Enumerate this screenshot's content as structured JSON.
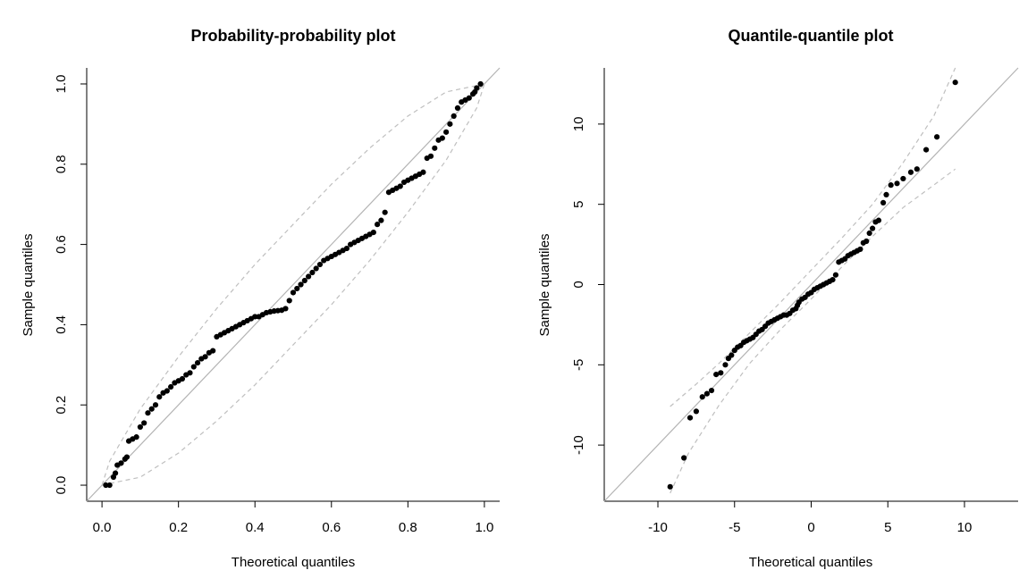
{
  "colors": {
    "points": "#000000",
    "reference_line": "#b3b3b3",
    "envelope": "#bfbfbf",
    "axes": "#000000"
  },
  "chart_data": [
    {
      "type": "scatter",
      "title": "Probability-probability plot",
      "xlabel": "Theoretical quantiles",
      "ylabel": "Sample quantiles",
      "xlim": [
        -0.04,
        1.04
      ],
      "ylim": [
        -0.04,
        1.04
      ],
      "xticks": [
        0.0,
        0.2,
        0.4,
        0.6,
        0.8,
        1.0
      ],
      "yticks": [
        0.0,
        0.2,
        0.4,
        0.6,
        0.8,
        1.0
      ],
      "xtick_labels": [
        "0.0",
        "0.2",
        "0.4",
        "0.6",
        "0.8",
        "1.0"
      ],
      "ytick_labels": [
        "0.0",
        "0.2",
        "0.4",
        "0.6",
        "0.8",
        "1.0"
      ],
      "grid": false,
      "reference_line": {
        "from": [
          -0.04,
          -0.04
        ],
        "to": [
          1.04,
          1.04
        ]
      },
      "envelope_upper": [
        [
          0.0,
          0.0
        ],
        [
          0.02,
          0.06
        ],
        [
          0.1,
          0.19
        ],
        [
          0.2,
          0.32
        ],
        [
          0.3,
          0.44
        ],
        [
          0.4,
          0.55
        ],
        [
          0.5,
          0.65
        ],
        [
          0.6,
          0.75
        ],
        [
          0.7,
          0.84
        ],
        [
          0.8,
          0.92
        ],
        [
          0.9,
          0.98
        ],
        [
          1.0,
          1.0
        ]
      ],
      "envelope_lower": [
        [
          0.0,
          0.0
        ],
        [
          0.1,
          0.02
        ],
        [
          0.2,
          0.08
        ],
        [
          0.3,
          0.16
        ],
        [
          0.4,
          0.25
        ],
        [
          0.5,
          0.35
        ],
        [
          0.6,
          0.45
        ],
        [
          0.7,
          0.56
        ],
        [
          0.8,
          0.68
        ],
        [
          0.9,
          0.81
        ],
        [
          0.98,
          0.94
        ],
        [
          1.0,
          1.0
        ]
      ],
      "series": [
        {
          "points": [
            [
              0.01,
              0.0
            ],
            [
              0.02,
              0.0
            ],
            [
              0.03,
              0.02
            ],
            [
              0.035,
              0.03
            ],
            [
              0.04,
              0.05
            ],
            [
              0.05,
              0.055
            ],
            [
              0.06,
              0.065
            ],
            [
              0.065,
              0.07
            ],
            [
              0.07,
              0.11
            ],
            [
              0.08,
              0.115
            ],
            [
              0.09,
              0.12
            ],
            [
              0.1,
              0.145
            ],
            [
              0.11,
              0.155
            ],
            [
              0.12,
              0.18
            ],
            [
              0.13,
              0.19
            ],
            [
              0.14,
              0.2
            ],
            [
              0.15,
              0.22
            ],
            [
              0.16,
              0.23
            ],
            [
              0.17,
              0.235
            ],
            [
              0.18,
              0.245
            ],
            [
              0.19,
              0.255
            ],
            [
              0.2,
              0.26
            ],
            [
              0.21,
              0.265
            ],
            [
              0.22,
              0.275
            ],
            [
              0.23,
              0.28
            ],
            [
              0.24,
              0.295
            ],
            [
              0.25,
              0.305
            ],
            [
              0.26,
              0.315
            ],
            [
              0.27,
              0.32
            ],
            [
              0.28,
              0.33
            ],
            [
              0.29,
              0.335
            ],
            [
              0.3,
              0.37
            ],
            [
              0.31,
              0.375
            ],
            [
              0.32,
              0.38
            ],
            [
              0.33,
              0.385
            ],
            [
              0.34,
              0.39
            ],
            [
              0.35,
              0.395
            ],
            [
              0.36,
              0.4
            ],
            [
              0.37,
              0.405
            ],
            [
              0.38,
              0.41
            ],
            [
              0.39,
              0.415
            ],
            [
              0.4,
              0.42
            ],
            [
              0.41,
              0.42
            ],
            [
              0.42,
              0.425
            ],
            [
              0.43,
              0.43
            ],
            [
              0.44,
              0.432
            ],
            [
              0.45,
              0.434
            ],
            [
              0.46,
              0.435
            ],
            [
              0.47,
              0.436
            ],
            [
              0.48,
              0.44
            ],
            [
              0.49,
              0.46
            ],
            [
              0.5,
              0.48
            ],
            [
              0.51,
              0.49
            ],
            [
              0.52,
              0.5
            ],
            [
              0.53,
              0.51
            ],
            [
              0.54,
              0.52
            ],
            [
              0.55,
              0.53
            ],
            [
              0.56,
              0.54
            ],
            [
              0.57,
              0.55
            ],
            [
              0.58,
              0.56
            ],
            [
              0.59,
              0.565
            ],
            [
              0.6,
              0.57
            ],
            [
              0.61,
              0.575
            ],
            [
              0.62,
              0.58
            ],
            [
              0.63,
              0.585
            ],
            [
              0.64,
              0.59
            ],
            [
              0.65,
              0.6
            ],
            [
              0.66,
              0.605
            ],
            [
              0.67,
              0.61
            ],
            [
              0.68,
              0.615
            ],
            [
              0.69,
              0.62
            ],
            [
              0.7,
              0.625
            ],
            [
              0.71,
              0.63
            ],
            [
              0.72,
              0.65
            ],
            [
              0.73,
              0.66
            ],
            [
              0.74,
              0.68
            ],
            [
              0.75,
              0.73
            ],
            [
              0.76,
              0.735
            ],
            [
              0.77,
              0.74
            ],
            [
              0.78,
              0.745
            ],
            [
              0.79,
              0.755
            ],
            [
              0.8,
              0.76
            ],
            [
              0.81,
              0.765
            ],
            [
              0.82,
              0.77
            ],
            [
              0.83,
              0.775
            ],
            [
              0.84,
              0.78
            ],
            [
              0.85,
              0.815
            ],
            [
              0.86,
              0.82
            ],
            [
              0.87,
              0.84
            ],
            [
              0.88,
              0.86
            ],
            [
              0.89,
              0.865
            ],
            [
              0.9,
              0.88
            ],
            [
              0.91,
              0.9
            ],
            [
              0.92,
              0.92
            ],
            [
              0.93,
              0.94
            ],
            [
              0.94,
              0.955
            ],
            [
              0.95,
              0.96
            ],
            [
              0.96,
              0.965
            ],
            [
              0.97,
              0.975
            ],
            [
              0.975,
              0.98
            ],
            [
              0.98,
              0.99
            ],
            [
              0.99,
              1.0
            ]
          ]
        }
      ]
    },
    {
      "type": "scatter",
      "title": "Quantile-quantile plot",
      "xlabel": "Theoretical quantiles",
      "ylabel": "Sample quantiles",
      "xlim": [
        -13.5,
        13.5
      ],
      "ylim": [
        -13.5,
        13.5
      ],
      "xticks": [
        -10,
        -5,
        0,
        5,
        10
      ],
      "yticks": [
        -10,
        -5,
        0,
        5,
        10
      ],
      "xtick_labels": [
        "-10",
        "-5",
        "0",
        "5",
        "10"
      ],
      "ytick_labels": [
        "-10",
        "-5",
        "0",
        "5",
        "10"
      ],
      "grid": false,
      "reference_line": {
        "from": [
          -13.5,
          -13.5
        ],
        "to": [
          13.5,
          13.5
        ]
      },
      "envelope_upper": [
        [
          -9.2,
          -7.6
        ],
        [
          -7.5,
          -6.2
        ],
        [
          -6.0,
          -4.9
        ],
        [
          -4.0,
          -3.0
        ],
        [
          -2.0,
          -1.1
        ],
        [
          0.0,
          0.9
        ],
        [
          2.0,
          2.9
        ],
        [
          4.0,
          5.0
        ],
        [
          6.0,
          7.6
        ],
        [
          8.0,
          10.5
        ],
        [
          9.4,
          13.5
        ]
      ],
      "envelope_lower": [
        [
          -9.2,
          -13.0
        ],
        [
          -8.0,
          -10.5
        ],
        [
          -6.0,
          -7.5
        ],
        [
          -4.0,
          -4.9
        ],
        [
          -2.0,
          -2.8
        ],
        [
          0.0,
          -0.9
        ],
        [
          2.0,
          1.1
        ],
        [
          4.0,
          3.0
        ],
        [
          6.0,
          4.8
        ],
        [
          8.0,
          6.2
        ],
        [
          9.4,
          7.2
        ]
      ],
      "series": [
        {
          "points": [
            [
              -9.2,
              -12.6
            ],
            [
              -8.3,
              -10.8
            ],
            [
              -7.9,
              -8.3
            ],
            [
              -7.5,
              -7.9
            ],
            [
              -7.1,
              -7.0
            ],
            [
              -6.8,
              -6.8
            ],
            [
              -6.5,
              -6.6
            ],
            [
              -6.2,
              -5.6
            ],
            [
              -5.9,
              -5.5
            ],
            [
              -5.6,
              -5.0
            ],
            [
              -5.4,
              -4.6
            ],
            [
              -5.2,
              -4.4
            ],
            [
              -5.0,
              -4.1
            ],
            [
              -4.8,
              -3.9
            ],
            [
              -4.6,
              -3.8
            ],
            [
              -4.4,
              -3.6
            ],
            [
              -4.2,
              -3.5
            ],
            [
              -4.0,
              -3.4
            ],
            [
              -3.8,
              -3.3
            ],
            [
              -3.6,
              -3.1
            ],
            [
              -3.4,
              -2.9
            ],
            [
              -3.2,
              -2.8
            ],
            [
              -3.0,
              -2.6
            ],
            [
              -2.8,
              -2.4
            ],
            [
              -2.6,
              -2.3
            ],
            [
              -2.4,
              -2.2
            ],
            [
              -2.2,
              -2.1
            ],
            [
              -2.0,
              -2.0
            ],
            [
              -1.8,
              -1.9
            ],
            [
              -1.6,
              -1.9
            ],
            [
              -1.4,
              -1.8
            ],
            [
              -1.2,
              -1.6
            ],
            [
              -1.0,
              -1.5
            ],
            [
              -0.9,
              -1.3
            ],
            [
              -0.8,
              -1.1
            ],
            [
              -0.6,
              -0.9
            ],
            [
              -0.4,
              -0.8
            ],
            [
              -0.2,
              -0.6
            ],
            [
              0.0,
              -0.5
            ],
            [
              0.2,
              -0.3
            ],
            [
              0.4,
              -0.2
            ],
            [
              0.6,
              -0.1
            ],
            [
              0.8,
              0.0
            ],
            [
              1.0,
              0.1
            ],
            [
              1.2,
              0.2
            ],
            [
              1.4,
              0.3
            ],
            [
              1.6,
              0.6
            ],
            [
              1.8,
              1.4
            ],
            [
              2.0,
              1.5
            ],
            [
              2.2,
              1.6
            ],
            [
              2.4,
              1.8
            ],
            [
              2.6,
              1.9
            ],
            [
              2.8,
              2.0
            ],
            [
              3.0,
              2.1
            ],
            [
              3.2,
              2.2
            ],
            [
              3.4,
              2.6
            ],
            [
              3.6,
              2.7
            ],
            [
              3.8,
              3.2
            ],
            [
              4.0,
              3.5
            ],
            [
              4.2,
              3.9
            ],
            [
              4.4,
              4.0
            ],
            [
              4.7,
              5.1
            ],
            [
              4.9,
              5.6
            ],
            [
              5.2,
              6.2
            ],
            [
              5.6,
              6.3
            ],
            [
              6.0,
              6.6
            ],
            [
              6.5,
              7.0
            ],
            [
              6.9,
              7.2
            ],
            [
              7.5,
              8.4
            ],
            [
              8.2,
              9.2
            ],
            [
              9.4,
              12.6
            ]
          ]
        }
      ]
    }
  ]
}
